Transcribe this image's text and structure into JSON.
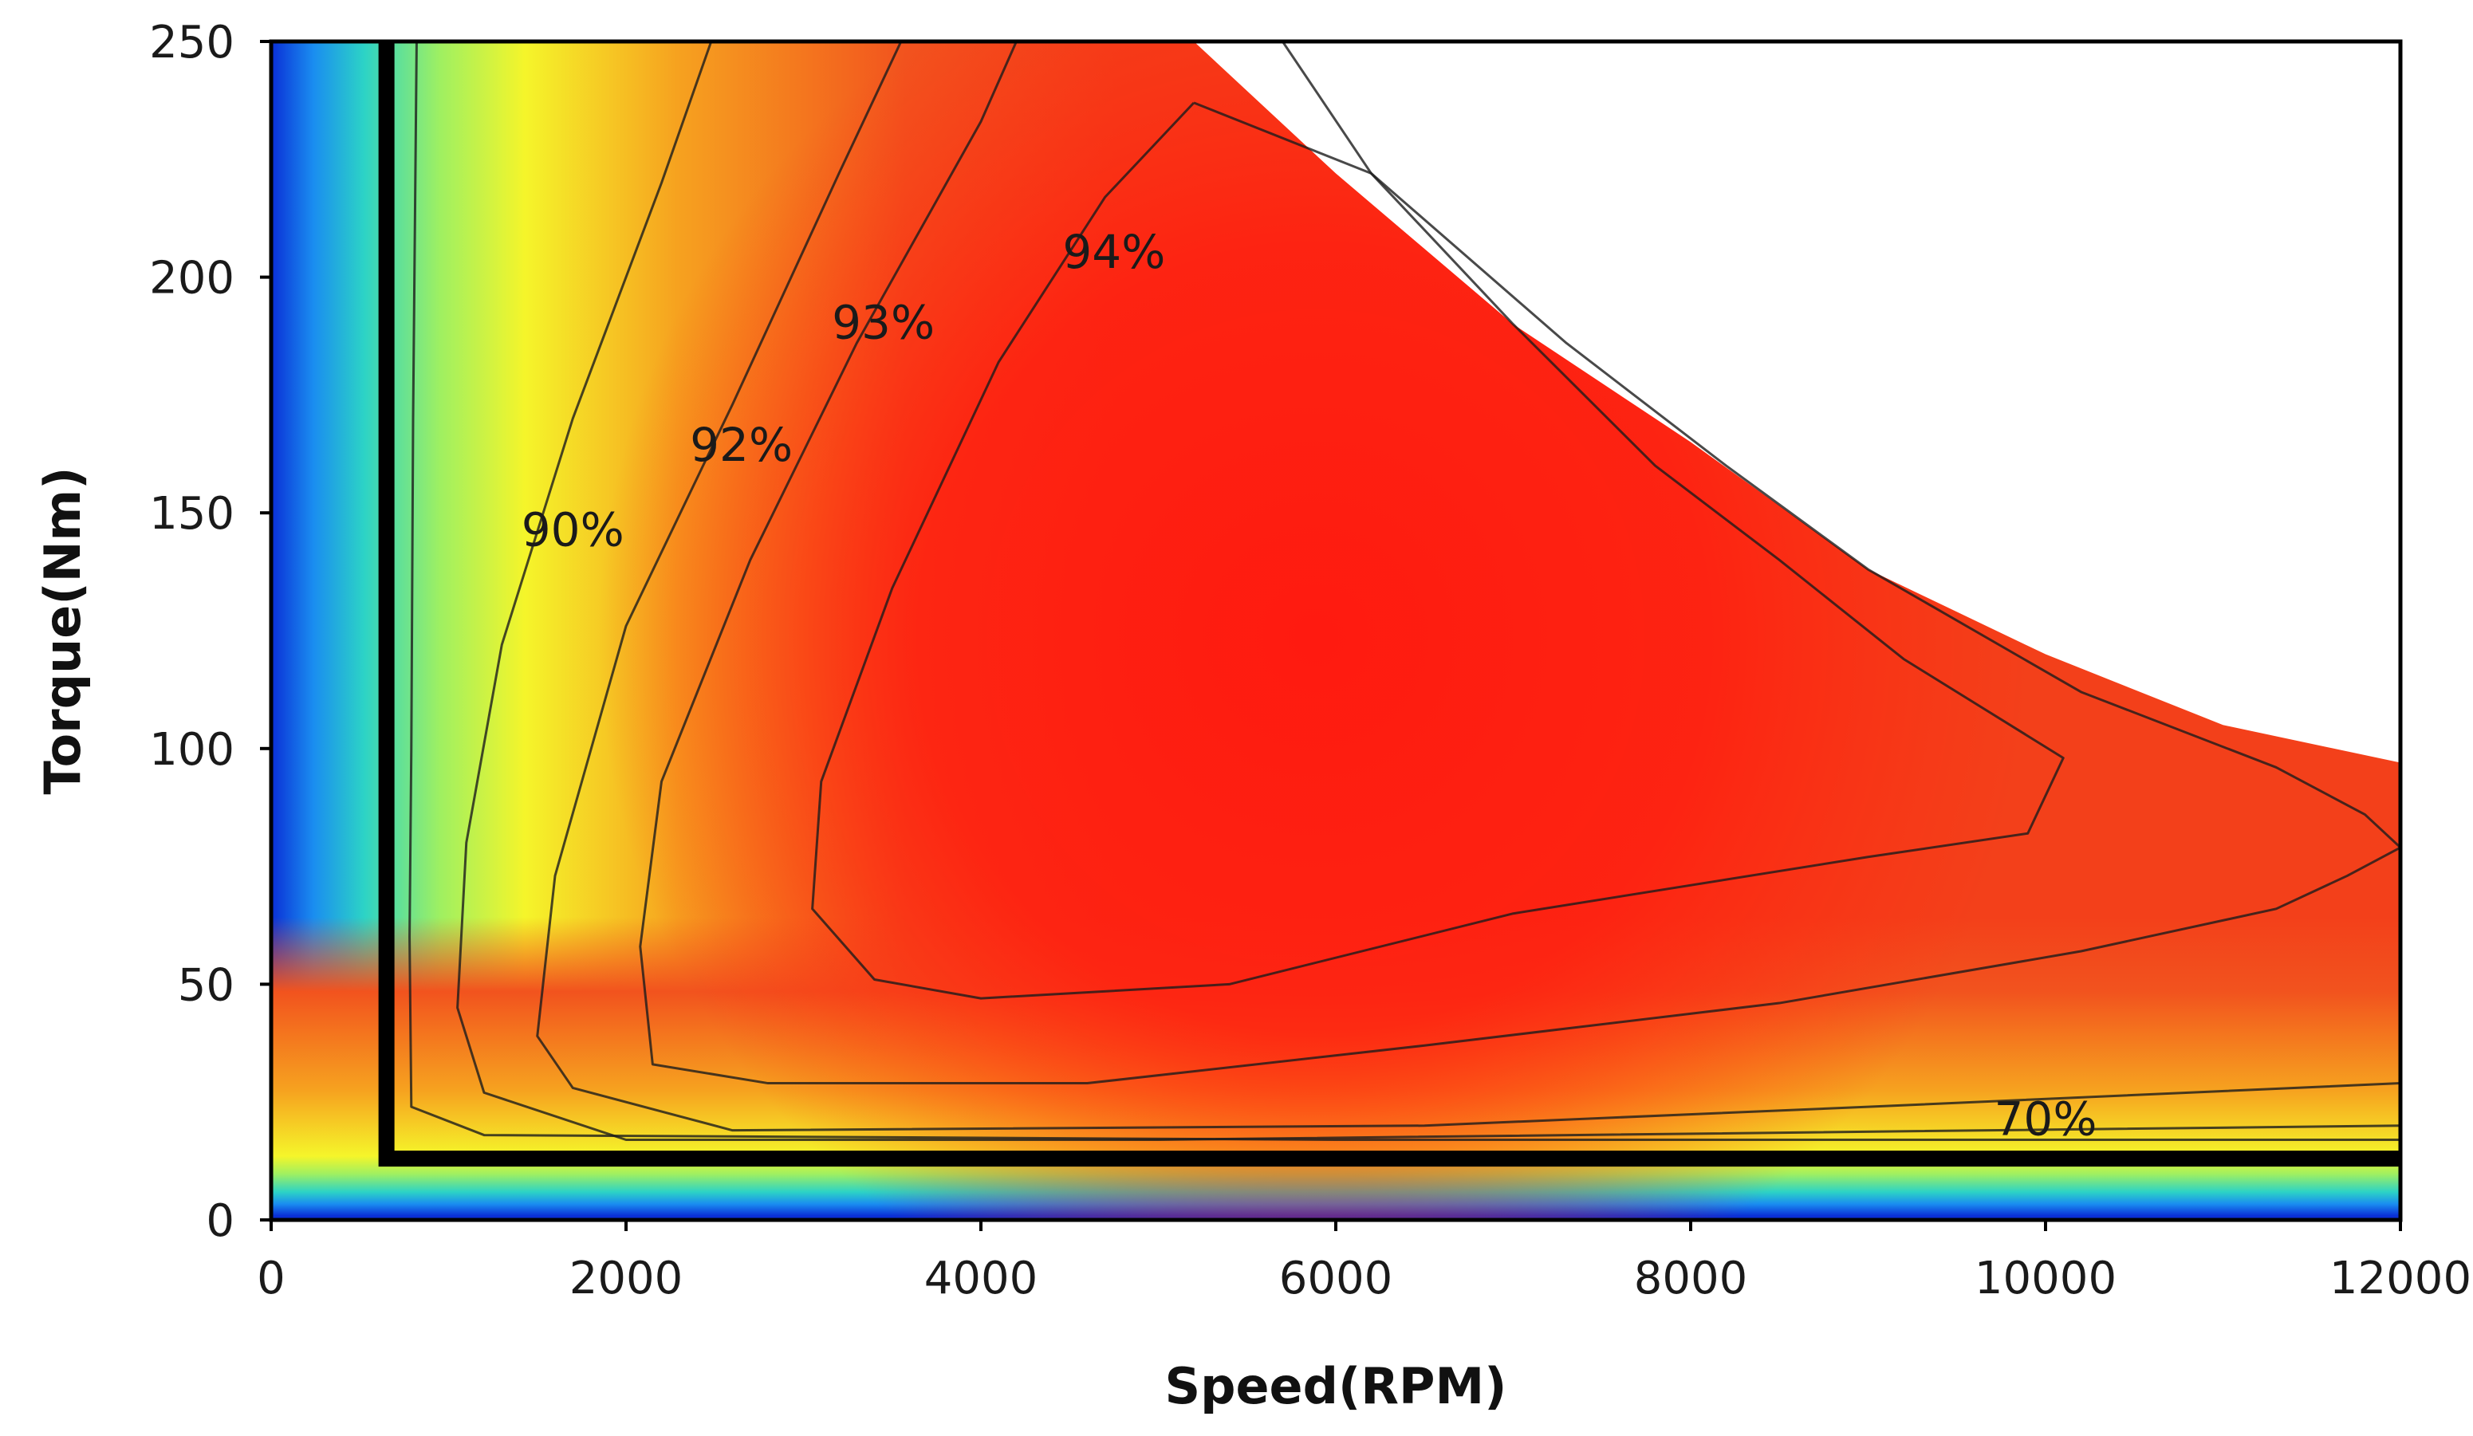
{
  "chart_data": {
    "type": "heatmap",
    "subtype": "efficiency-contour-map",
    "title": "",
    "xlabel": "Speed(RPM)",
    "ylabel": "Torque(Nm)",
    "xlim": [
      0,
      12000
    ],
    "ylim": [
      0,
      250
    ],
    "xticks": [
      0,
      2000,
      4000,
      6000,
      8000,
      10000,
      12000
    ],
    "yticks": [
      0,
      50,
      100,
      150,
      200,
      250
    ],
    "colormap": [
      "#0a2fd6",
      "#1a8df0",
      "#2cd3c6",
      "#9ff061",
      "#f5f52a",
      "#f6a21f",
      "#f2531e",
      "#ff1a10"
    ],
    "max_torque_envelope": [
      {
        "speed": 0,
        "torque": 250
      },
      {
        "speed": 5200,
        "torque": 250
      },
      {
        "speed": 6000,
        "torque": 222
      },
      {
        "speed": 7000,
        "torque": 190
      },
      {
        "speed": 8000,
        "torque": 165
      },
      {
        "speed": 9000,
        "torque": 138
      },
      {
        "speed": 10000,
        "torque": 120
      },
      {
        "speed": 11000,
        "torque": 105
      },
      {
        "speed": 12000,
        "torque": 97
      }
    ],
    "operating_region_corner": {
      "speed": 650,
      "torque": 13
    },
    "contours": [
      {
        "level": "94%",
        "points": [
          [
            5200,
            237
          ],
          [
            6200,
            222
          ],
          [
            7000,
            190
          ],
          [
            7800,
            160
          ],
          [
            8500,
            140
          ],
          [
            9200,
            119
          ],
          [
            10100,
            98
          ],
          [
            9900,
            82
          ],
          [
            9000,
            77
          ],
          [
            7000,
            65
          ],
          [
            5400,
            50
          ],
          [
            4000,
            47
          ],
          [
            3400,
            51
          ],
          [
            3050,
            66
          ],
          [
            3100,
            93
          ],
          [
            3500,
            134
          ],
          [
            4100,
            182
          ],
          [
            4700,
            217
          ],
          [
            5200,
            237
          ]
        ]
      },
      {
        "level": "93%",
        "points": [
          [
            4200,
            250
          ],
          [
            4000,
            233
          ],
          [
            3300,
            186
          ],
          [
            2700,
            140
          ],
          [
            2200,
            93
          ],
          [
            2080,
            58
          ],
          [
            2150,
            33
          ],
          [
            2800,
            29
          ],
          [
            4600,
            29
          ],
          [
            6500,
            37
          ],
          [
            8500,
            46
          ],
          [
            10200,
            57
          ],
          [
            11300,
            66
          ],
          [
            11700,
            73
          ],
          [
            12000,
            79
          ],
          [
            11800,
            86
          ],
          [
            11300,
            96
          ],
          [
            10200,
            112
          ],
          [
            9000,
            138
          ],
          [
            8200,
            160
          ],
          [
            7300,
            186
          ],
          [
            6200,
            222
          ],
          [
            5700,
            250
          ]
        ]
      },
      {
        "level": "92%",
        "points": [
          [
            3550,
            250
          ],
          [
            3200,
            222
          ],
          [
            2600,
            173
          ],
          [
            2000,
            126
          ],
          [
            1600,
            73
          ],
          [
            1500,
            39
          ],
          [
            1700,
            28
          ],
          [
            2600,
            19
          ],
          [
            6500,
            20
          ],
          [
            9000,
            24
          ],
          [
            12000,
            29
          ]
        ]
      },
      {
        "level": "90%",
        "points": [
          [
            2480,
            250
          ],
          [
            2200,
            220
          ],
          [
            1700,
            170
          ],
          [
            1300,
            122
          ],
          [
            1100,
            80
          ],
          [
            1050,
            45
          ],
          [
            1200,
            27
          ],
          [
            2000,
            17
          ],
          [
            5000,
            17
          ],
          [
            12000,
            20
          ]
        ]
      },
      {
        "level": "70%",
        "points": [
          [
            820,
            250
          ],
          [
            800,
            170
          ],
          [
            790,
            100
          ],
          [
            780,
            60
          ],
          [
            790,
            24
          ],
          [
            1200,
            18
          ],
          [
            6000,
            17
          ],
          [
            12000,
            17
          ]
        ]
      }
    ],
    "annotations": [
      {
        "text": "94%",
        "speed": 4750,
        "torque": 202
      },
      {
        "text": "93%",
        "speed": 3450,
        "torque": 187
      },
      {
        "text": "92%",
        "speed": 2650,
        "torque": 161
      },
      {
        "text": "90%",
        "speed": 1700,
        "torque": 143
      },
      {
        "text": "70%",
        "speed": 10000,
        "torque": 18
      }
    ]
  }
}
